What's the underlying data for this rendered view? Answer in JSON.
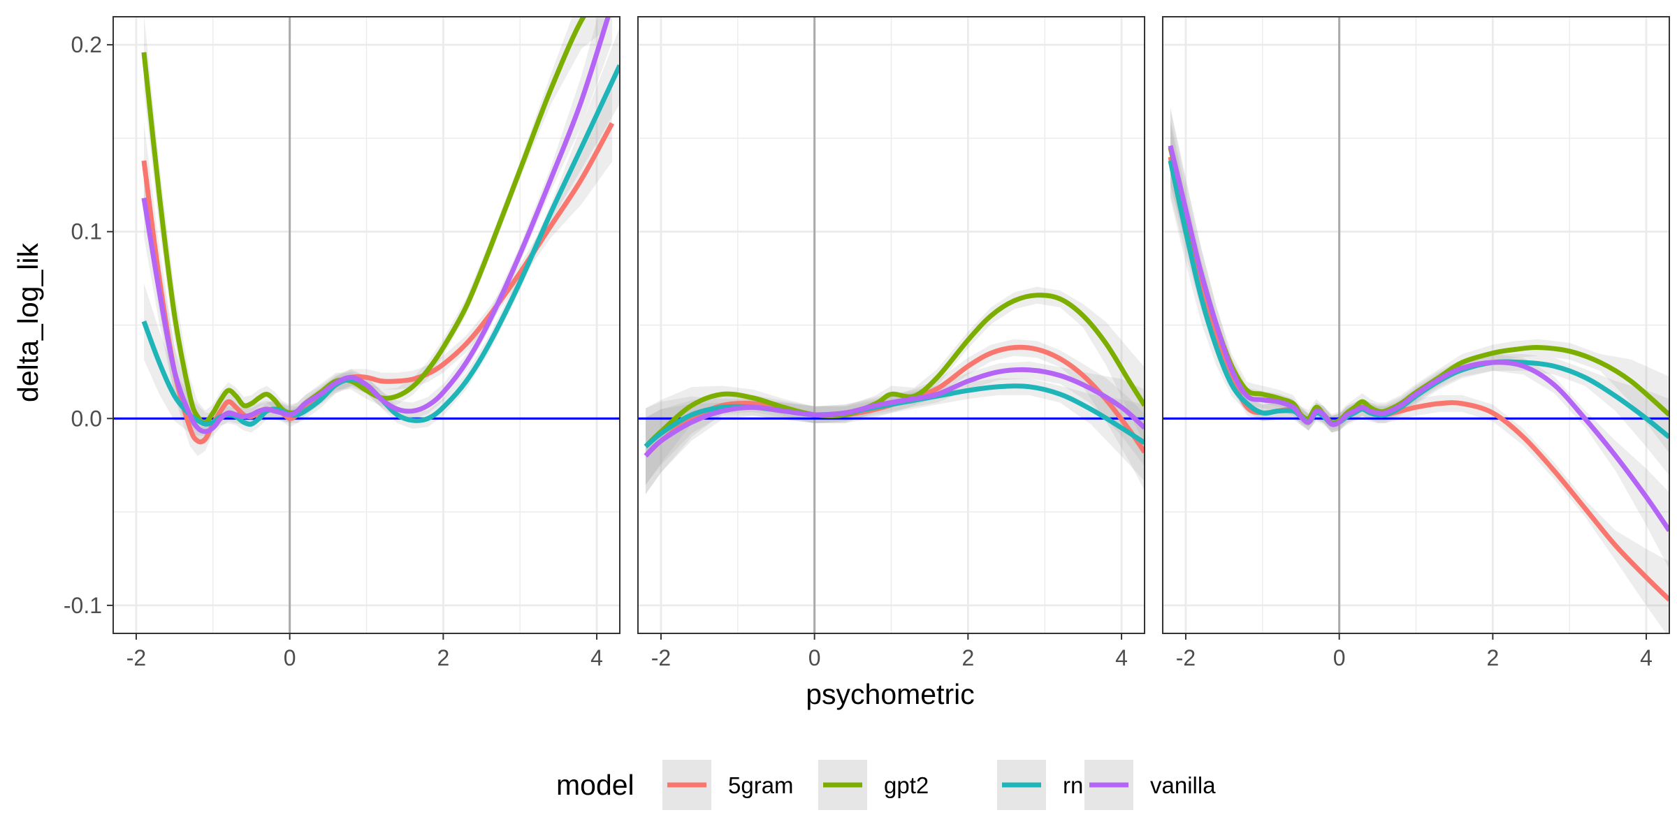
{
  "chart_data": {
    "type": "line",
    "xlabel": "psychometric",
    "ylabel": "delta_log_lik",
    "xlim": [
      -2.3,
      4.3
    ],
    "ylim": [
      -0.115,
      0.215
    ],
    "x_ticks": [
      -2,
      0,
      2,
      4
    ],
    "x_tick_labels": [
      "-2",
      "0",
      "2",
      "4"
    ],
    "y_ticks": [
      -0.1,
      0.0,
      0.1,
      0.2
    ],
    "y_tick_labels": [
      "-0.1",
      "0.0",
      "0.1",
      "0.2"
    ],
    "grid": true,
    "reference_lines": {
      "horizontal_y": 0,
      "horizontal_color": "#0000ff",
      "vertical_x": 0,
      "vertical_color": "#aaaaaa"
    },
    "legend": {
      "title": "model",
      "position": "bottom",
      "entries": [
        {
          "label": "5gram",
          "color": "#F8766D"
        },
        {
          "label": "gpt2",
          "color": "#7CAE00"
        },
        {
          "label": "rnng",
          "color": "#1FB5B8"
        },
        {
          "label": "vanilla",
          "color": "#B565F5"
        }
      ]
    },
    "panels": [
      {
        "series": [
          {
            "name": "5gram",
            "color": "#F8766D",
            "x": [
              -1.9,
              -1.7,
              -1.5,
              -1.3,
              -1.2,
              -1.1,
              -1.0,
              -0.9,
              -0.8,
              -0.7,
              -0.6,
              -0.5,
              -0.4,
              -0.3,
              -0.2,
              -0.1,
              0.0,
              0.1,
              0.2,
              0.4,
              0.6,
              0.8,
              1.0,
              1.2,
              1.4,
              1.6,
              1.8,
              2.0,
              2.3,
              2.6,
              3.0,
              3.4,
              3.8,
              4.2
            ],
            "y": [
              0.138,
              0.075,
              0.025,
              -0.005,
              -0.012,
              -0.011,
              -0.003,
              0.004,
              0.009,
              0.006,
              0.002,
              0.001,
              0.003,
              0.004,
              0.005,
              0.003,
              0.0,
              0.002,
              0.006,
              0.012,
              0.018,
              0.022,
              0.022,
              0.02,
              0.02,
              0.021,
              0.024,
              0.029,
              0.04,
              0.055,
              0.078,
              0.103,
              0.128,
              0.158
            ]
          },
          {
            "name": "gpt2",
            "color": "#7CAE00",
            "x": [
              -1.9,
              -1.7,
              -1.5,
              -1.3,
              -1.2,
              -1.1,
              -1.0,
              -0.9,
              -0.8,
              -0.7,
              -0.6,
              -0.5,
              -0.4,
              -0.3,
              -0.2,
              -0.1,
              0.0,
              0.1,
              0.2,
              0.4,
              0.6,
              0.8,
              1.0,
              1.2,
              1.4,
              1.6,
              1.8,
              2.0,
              2.3,
              2.6,
              3.0,
              3.4,
              3.8,
              4.1
            ],
            "y": [
              0.196,
              0.12,
              0.055,
              0.012,
              0.001,
              -0.002,
              0.003,
              0.01,
              0.015,
              0.012,
              0.007,
              0.008,
              0.011,
              0.013,
              0.01,
              0.005,
              0.003,
              0.004,
              0.008,
              0.014,
              0.02,
              0.02,
              0.015,
              0.011,
              0.012,
              0.017,
              0.026,
              0.038,
              0.06,
              0.09,
              0.133,
              0.176,
              0.213,
              0.228
            ]
          },
          {
            "name": "rnng",
            "color": "#1FB5B8",
            "x": [
              -1.9,
              -1.7,
              -1.5,
              -1.3,
              -1.2,
              -1.1,
              -1.0,
              -0.9,
              -0.8,
              -0.7,
              -0.6,
              -0.5,
              -0.4,
              -0.3,
              -0.2,
              -0.1,
              0.0,
              0.1,
              0.2,
              0.4,
              0.6,
              0.8,
              1.0,
              1.2,
              1.4,
              1.6,
              1.8,
              2.0,
              2.3,
              2.6,
              3.0,
              3.4,
              3.8,
              4.3
            ],
            "y": [
              0.052,
              0.03,
              0.012,
              0.002,
              -0.001,
              -0.003,
              -0.002,
              0.001,
              0.002,
              0.001,
              -0.002,
              -0.003,
              0.0,
              0.004,
              0.005,
              0.004,
              0.002,
              0.002,
              0.004,
              0.01,
              0.018,
              0.021,
              0.018,
              0.01,
              0.002,
              -0.001,
              0.0,
              0.006,
              0.02,
              0.04,
              0.073,
              0.11,
              0.145,
              0.189
            ]
          },
          {
            "name": "vanilla",
            "color": "#B565F5",
            "x": [
              -1.9,
              -1.7,
              -1.5,
              -1.3,
              -1.2,
              -1.1,
              -1.0,
              -0.9,
              -0.8,
              -0.7,
              -0.6,
              -0.5,
              -0.4,
              -0.3,
              -0.2,
              -0.1,
              0.0,
              0.1,
              0.2,
              0.4,
              0.6,
              0.8,
              1.0,
              1.2,
              1.4,
              1.6,
              1.8,
              2.0,
              2.3,
              2.6,
              3.0,
              3.4,
              3.8,
              4.2
            ],
            "y": [
              0.118,
              0.068,
              0.025,
              0.002,
              -0.005,
              -0.007,
              -0.005,
              0.0,
              0.003,
              0.002,
              0.001,
              0.002,
              0.004,
              0.005,
              0.004,
              0.003,
              0.002,
              0.004,
              0.008,
              0.013,
              0.019,
              0.022,
              0.018,
              0.01,
              0.005,
              0.004,
              0.007,
              0.014,
              0.03,
              0.052,
              0.088,
              0.128,
              0.17,
              0.222
            ]
          }
        ]
      },
      {
        "series": [
          {
            "name": "5gram",
            "color": "#F8766D",
            "x": [
              -2.2,
              -2.0,
              -1.6,
              -1.2,
              -0.8,
              -0.4,
              0.0,
              0.4,
              0.8,
              1.2,
              1.6,
              2.0,
              2.3,
              2.6,
              2.9,
              3.2,
              3.5,
              3.8,
              4.1,
              4.3
            ],
            "y": [
              -0.02,
              -0.012,
              0.0,
              0.007,
              0.008,
              0.005,
              0.002,
              0.002,
              0.005,
              0.01,
              0.016,
              0.028,
              0.035,
              0.038,
              0.037,
              0.032,
              0.023,
              0.01,
              -0.006,
              -0.018
            ]
          },
          {
            "name": "gpt2",
            "color": "#7CAE00",
            "x": [
              -2.2,
              -2.0,
              -1.6,
              -1.2,
              -0.8,
              -0.4,
              0.0,
              0.4,
              0.8,
              1.0,
              1.3,
              1.6,
              2.0,
              2.3,
              2.6,
              2.9,
              3.2,
              3.5,
              3.8,
              4.1,
              4.3
            ],
            "y": [
              -0.015,
              -0.007,
              0.007,
              0.013,
              0.011,
              0.006,
              0.002,
              0.002,
              0.008,
              0.013,
              0.012,
              0.022,
              0.042,
              0.055,
              0.063,
              0.066,
              0.064,
              0.055,
              0.04,
              0.02,
              0.007
            ]
          },
          {
            "name": "rnng",
            "color": "#1FB5B8",
            "x": [
              -2.2,
              -2.0,
              -1.6,
              -1.2,
              -0.8,
              -0.4,
              0.0,
              0.4,
              0.8,
              1.2,
              1.6,
              2.0,
              2.4,
              2.8,
              3.2,
              3.6,
              4.0,
              4.3
            ],
            "y": [
              -0.015,
              -0.008,
              0.002,
              0.006,
              0.006,
              0.004,
              0.002,
              0.003,
              0.006,
              0.009,
              0.012,
              0.015,
              0.017,
              0.017,
              0.013,
              0.005,
              -0.005,
              -0.013
            ]
          },
          {
            "name": "vanilla",
            "color": "#B565F5",
            "x": [
              -2.2,
              -2.0,
              -1.6,
              -1.2,
              -0.8,
              -0.4,
              0.0,
              0.4,
              0.8,
              1.2,
              1.6,
              2.0,
              2.4,
              2.8,
              3.2,
              3.6,
              4.0,
              4.3
            ],
            "y": [
              -0.02,
              -0.012,
              -0.002,
              0.004,
              0.006,
              0.004,
              0.002,
              0.003,
              0.007,
              0.01,
              0.013,
              0.02,
              0.025,
              0.026,
              0.023,
              0.016,
              0.006,
              -0.005
            ]
          }
        ]
      },
      {
        "series": [
          {
            "name": "5gram",
            "color": "#F8766D",
            "x": [
              -2.2,
              -2.0,
              -1.8,
              -1.6,
              -1.4,
              -1.2,
              -1.0,
              -0.8,
              -0.6,
              -0.5,
              -0.4,
              -0.3,
              -0.2,
              -0.1,
              0.0,
              0.1,
              0.2,
              0.3,
              0.4,
              0.5,
              0.6,
              0.8,
              1.0,
              1.3,
              1.6,
              2.0,
              2.4,
              2.8,
              3.2,
              3.6,
              4.0,
              4.3
            ],
            "y": [
              0.14,
              0.105,
              0.072,
              0.045,
              0.022,
              0.006,
              0.003,
              0.004,
              0.005,
              0.002,
              -0.002,
              0.004,
              0.002,
              -0.003,
              -0.002,
              0.002,
              0.004,
              0.006,
              0.004,
              0.002,
              0.002,
              0.004,
              0.006,
              0.008,
              0.008,
              0.003,
              -0.01,
              -0.028,
              -0.048,
              -0.068,
              -0.085,
              -0.097
            ]
          },
          {
            "name": "gpt2",
            "color": "#7CAE00",
            "x": [
              -2.2,
              -2.0,
              -1.8,
              -1.6,
              -1.4,
              -1.2,
              -1.0,
              -0.8,
              -0.6,
              -0.5,
              -0.4,
              -0.3,
              -0.2,
              -0.1,
              0.0,
              0.1,
              0.2,
              0.3,
              0.4,
              0.5,
              0.6,
              0.8,
              1.0,
              1.3,
              1.6,
              2.0,
              2.3,
              2.6,
              3.0,
              3.4,
              3.8,
              4.3
            ],
            "y": [
              0.145,
              0.11,
              0.078,
              0.05,
              0.028,
              0.015,
              0.013,
              0.011,
              0.008,
              0.002,
              0.0,
              0.006,
              0.002,
              -0.002,
              -0.001,
              0.003,
              0.006,
              0.009,
              0.006,
              0.004,
              0.004,
              0.008,
              0.014,
              0.022,
              0.03,
              0.035,
              0.037,
              0.038,
              0.036,
              0.03,
              0.02,
              0.002
            ]
          },
          {
            "name": "rnng",
            "color": "#1FB5B8",
            "x": [
              -2.2,
              -2.0,
              -1.8,
              -1.6,
              -1.4,
              -1.2,
              -1.0,
              -0.8,
              -0.6,
              -0.5,
              -0.4,
              -0.3,
              -0.2,
              -0.1,
              0.0,
              0.1,
              0.2,
              0.3,
              0.4,
              0.5,
              0.6,
              0.8,
              1.0,
              1.3,
              1.6,
              2.0,
              2.4,
              2.8,
              3.2,
              3.6,
              4.0,
              4.3
            ],
            "y": [
              0.138,
              0.1,
              0.065,
              0.038,
              0.018,
              0.008,
              0.003,
              0.004,
              0.004,
              0.001,
              -0.002,
              0.003,
              0.001,
              -0.003,
              -0.002,
              0.001,
              0.003,
              0.005,
              0.003,
              0.002,
              0.002,
              0.006,
              0.012,
              0.02,
              0.026,
              0.03,
              0.03,
              0.028,
              0.022,
              0.012,
              0.0,
              -0.01
            ]
          },
          {
            "name": "vanilla",
            "color": "#B565F5",
            "x": [
              -2.2,
              -2.0,
              -1.8,
              -1.6,
              -1.4,
              -1.2,
              -1.0,
              -0.8,
              -0.6,
              -0.5,
              -0.4,
              -0.3,
              -0.2,
              -0.1,
              0.0,
              0.1,
              0.2,
              0.3,
              0.4,
              0.5,
              0.6,
              0.8,
              1.0,
              1.3,
              1.6,
              2.0,
              2.4,
              2.8,
              3.2,
              3.6,
              4.0,
              4.3
            ],
            "y": [
              0.146,
              0.112,
              0.078,
              0.05,
              0.026,
              0.012,
              0.01,
              0.009,
              0.006,
              0.001,
              -0.002,
              0.004,
              0.002,
              -0.003,
              -0.002,
              0.002,
              0.004,
              0.006,
              0.004,
              0.003,
              0.003,
              0.007,
              0.013,
              0.021,
              0.027,
              0.03,
              0.028,
              0.018,
              0.0,
              -0.02,
              -0.042,
              -0.06
            ]
          }
        ]
      }
    ]
  }
}
